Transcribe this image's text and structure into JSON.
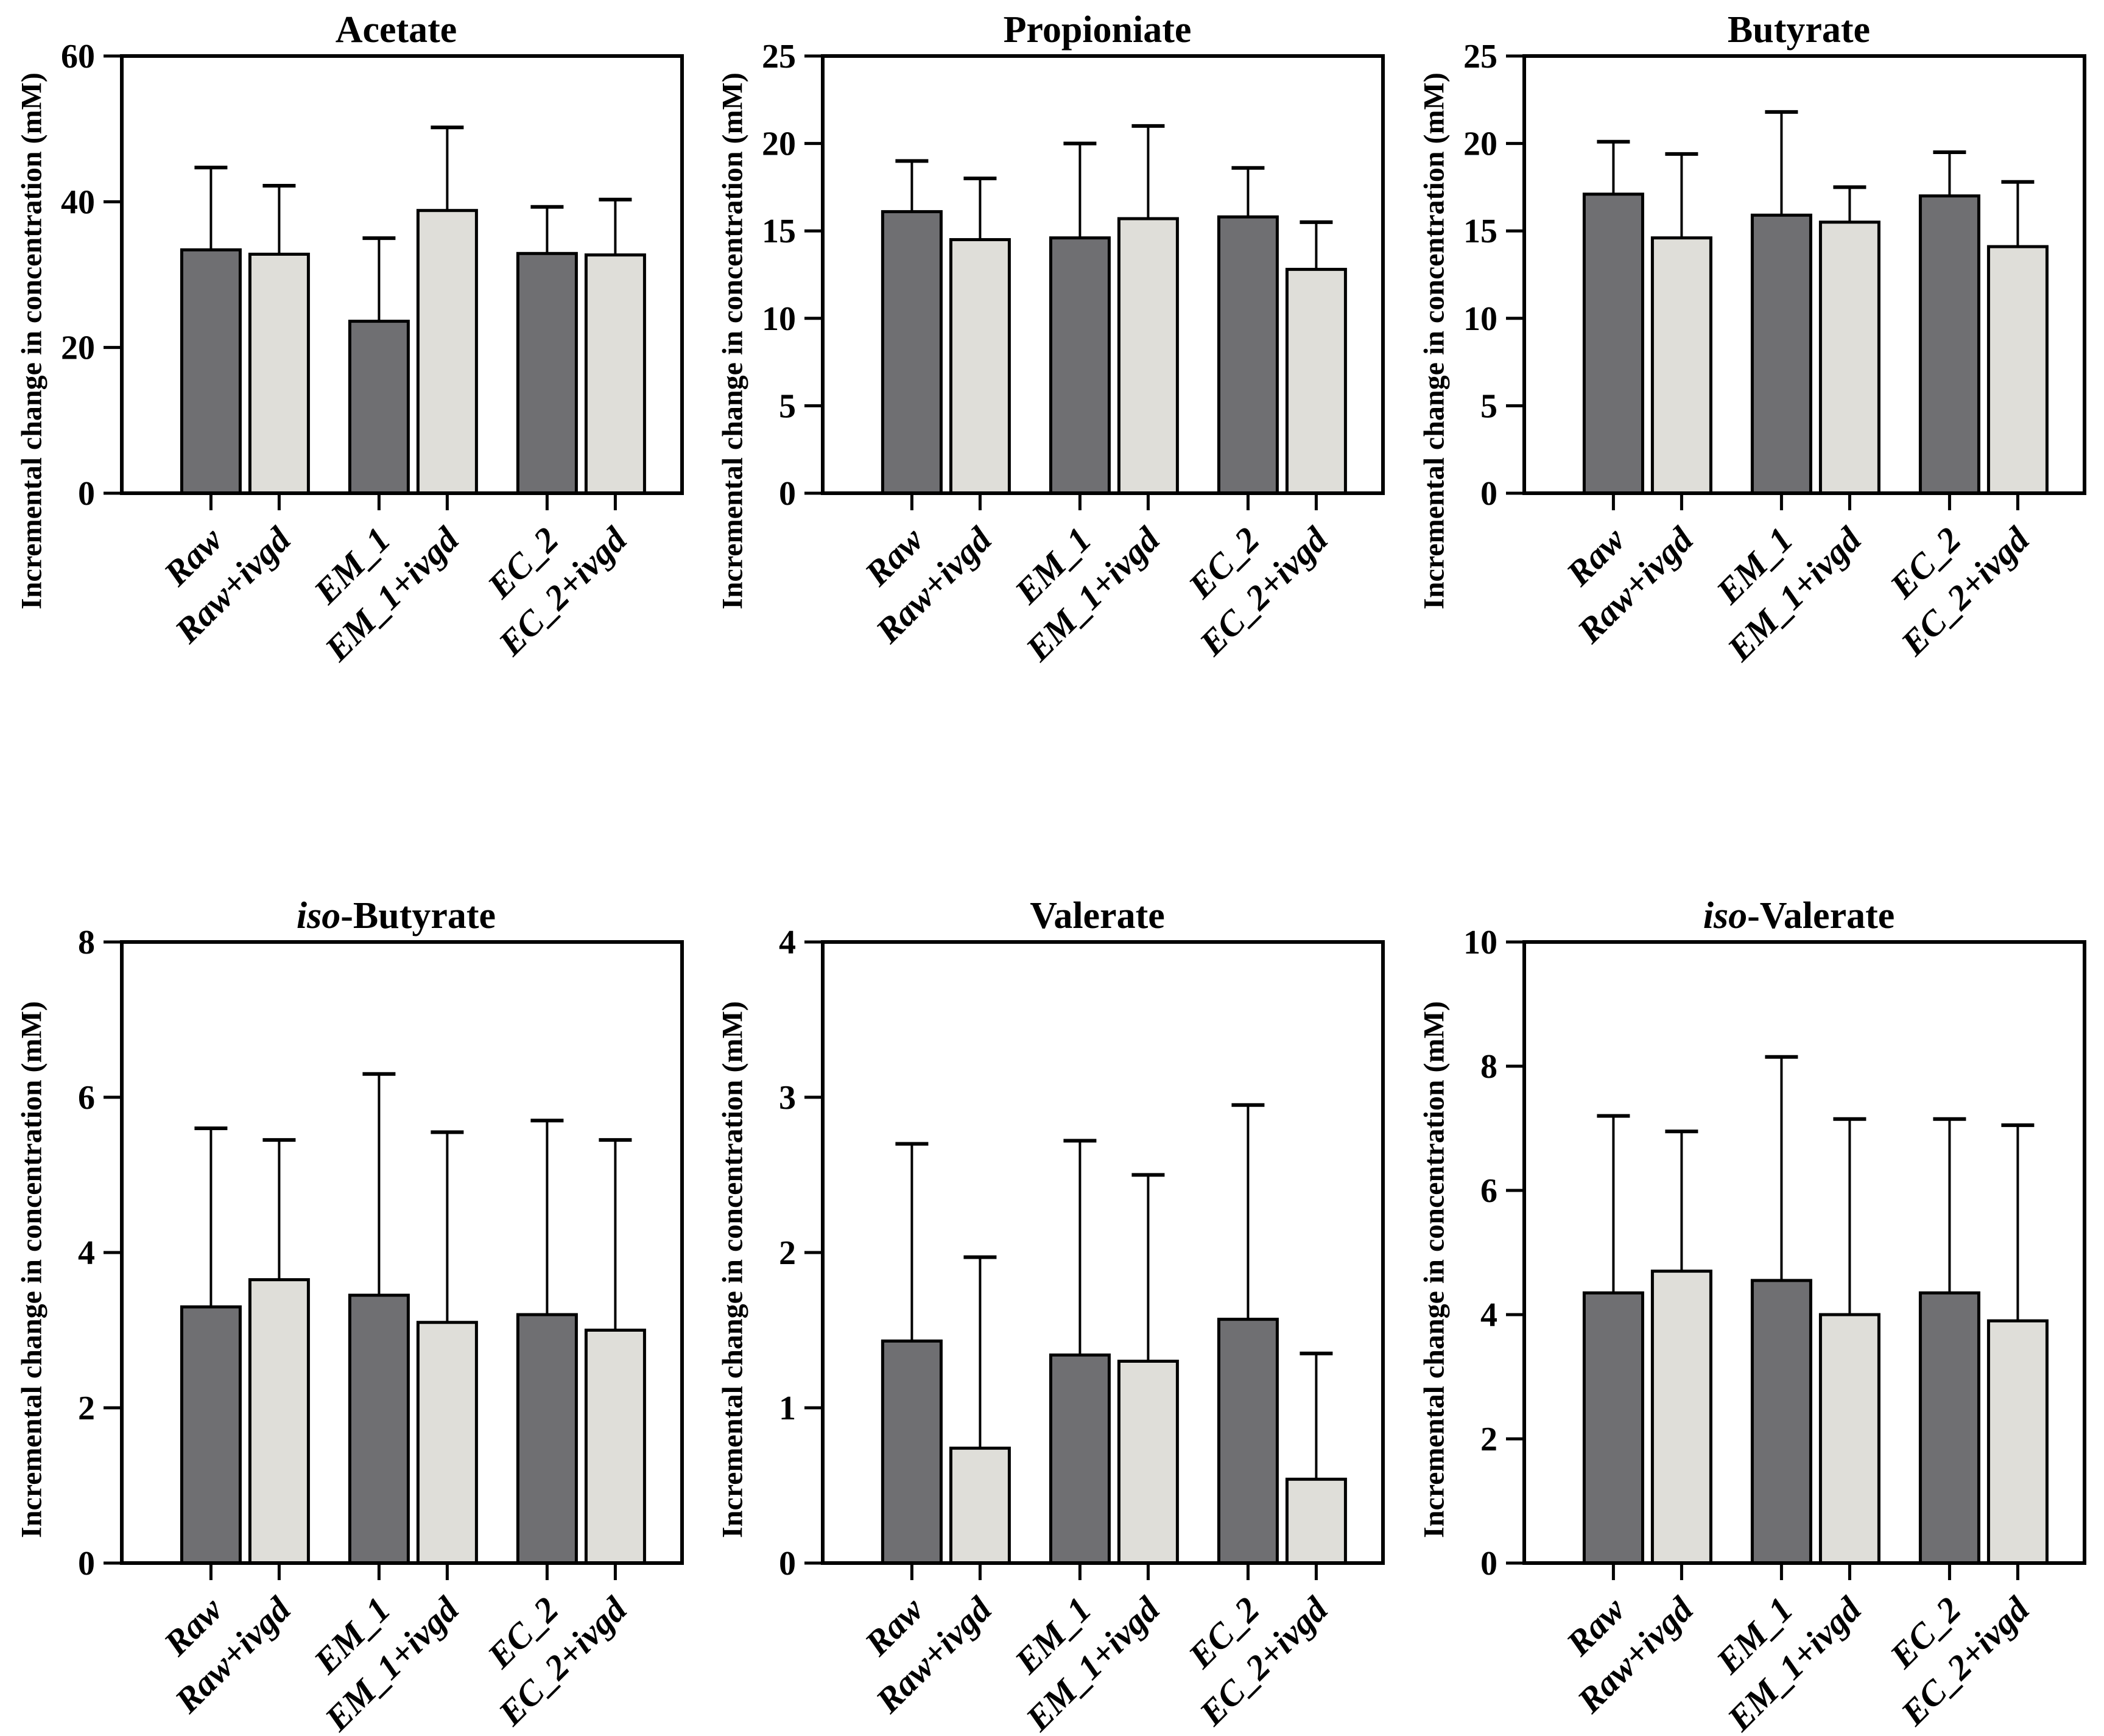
{
  "figure": {
    "background_color": "#ffffff",
    "text_color": "#000000",
    "bar_dark_color": "#6f6f72",
    "bar_light_color": "#dfded9",
    "bar_border_color": "#000000",
    "shared_y_axis_label": "Incremental change in concentration (mM)",
    "categories": [
      "Raw",
      "Raw+ivgd",
      "EM_1",
      "EM_1+ivgd",
      "EC_2",
      "EC_2+ivgd"
    ],
    "bar_style_sequence": [
      "dark",
      "light",
      "dark",
      "light",
      "dark",
      "light"
    ]
  },
  "chart_data": [
    {
      "type": "bar",
      "title": "Acetate",
      "title_italic_prefix": "",
      "title_rest": "Acetate",
      "xlabel": "",
      "ylabel": "Incremental change in concentration (mM)",
      "categories": [
        "Raw",
        "Raw+ivgd",
        "EM_1",
        "EM_1+ivgd",
        "EC_2",
        "EC_2+ivgd"
      ],
      "values": [
        33.4,
        32.8,
        23.6,
        38.8,
        32.9,
        32.7
      ],
      "error_bar_tops": [
        44.7,
        42.2,
        35.0,
        50.2,
        39.3,
        40.3
      ],
      "ylim": [
        0,
        60
      ],
      "yticks": [
        0,
        20,
        40,
        60
      ],
      "grid": false,
      "legend_position": "none"
    },
    {
      "type": "bar",
      "title": "Propioniate",
      "title_italic_prefix": "",
      "title_rest": "Propioniate",
      "xlabel": "",
      "ylabel": "Incremental change in concentration (mM)",
      "categories": [
        "Raw",
        "Raw+ivgd",
        "EM_1",
        "EM_1+ivgd",
        "EC_2",
        "EC_2+ivgd"
      ],
      "values": [
        16.1,
        14.5,
        14.6,
        15.7,
        15.8,
        12.8
      ],
      "error_bar_tops": [
        19.0,
        18.0,
        20.0,
        21.0,
        18.6,
        15.5
      ],
      "ylim": [
        0,
        25
      ],
      "yticks": [
        0,
        5,
        10,
        15,
        20,
        25
      ],
      "grid": false,
      "legend_position": "none"
    },
    {
      "type": "bar",
      "title": "Butyrate",
      "title_italic_prefix": "",
      "title_rest": "Butyrate",
      "xlabel": "",
      "ylabel": "Incremental change in concentration (mM)",
      "categories": [
        "Raw",
        "Raw+ivgd",
        "EM_1",
        "EM_1+ivgd",
        "EC_2",
        "EC_2+ivgd"
      ],
      "values": [
        17.1,
        14.6,
        15.9,
        15.5,
        17.0,
        14.1
      ],
      "error_bar_tops": [
        20.1,
        19.4,
        21.8,
        17.5,
        19.5,
        17.8
      ],
      "ylim": [
        0,
        25
      ],
      "yticks": [
        0,
        5,
        10,
        15,
        20,
        25
      ],
      "grid": false,
      "legend_position": "none"
    },
    {
      "type": "bar",
      "title": "iso-Butyrate",
      "title_italic_prefix": "iso",
      "title_rest": "-Butyrate",
      "xlabel": "",
      "ylabel": "Incremental change in concentration (mM)",
      "categories": [
        "Raw",
        "Raw+ivgd",
        "EM_1",
        "EM_1+ivgd",
        "EC_2",
        "EC_2+ivgd"
      ],
      "values": [
        3.3,
        3.65,
        3.45,
        3.1,
        3.2,
        3.0
      ],
      "error_bar_tops": [
        5.6,
        5.45,
        6.3,
        5.55,
        5.7,
        5.45
      ],
      "ylim": [
        0,
        8
      ],
      "yticks": [
        0,
        2,
        4,
        6,
        8
      ],
      "grid": false,
      "legend_position": "none"
    },
    {
      "type": "bar",
      "title": "Valerate",
      "title_italic_prefix": "",
      "title_rest": "Valerate",
      "xlabel": "",
      "ylabel": "Incremental change in concentration (mM)",
      "categories": [
        "Raw",
        "Raw+ivgd",
        "EM_1",
        "EM_1+ivgd",
        "EC_2",
        "EC_2+ivgd"
      ],
      "values": [
        1.43,
        0.74,
        1.34,
        1.3,
        1.57,
        0.54
      ],
      "error_bar_tops": [
        2.7,
        1.97,
        2.72,
        2.5,
        2.95,
        1.35
      ],
      "ylim": [
        0,
        4
      ],
      "yticks": [
        0,
        1,
        2,
        3,
        4
      ],
      "grid": false,
      "legend_position": "none"
    },
    {
      "type": "bar",
      "title": "iso-Valerate",
      "title_italic_prefix": "iso",
      "title_rest": "-Valerate",
      "xlabel": "",
      "ylabel": "Incremental change in concentration (mM)",
      "categories": [
        "Raw",
        "Raw+ivgd",
        "EM_1",
        "EM_1+ivgd",
        "EC_2",
        "EC_2+ivgd"
      ],
      "values": [
        4.35,
        4.7,
        4.55,
        4.0,
        4.35,
        3.9
      ],
      "error_bar_tops": [
        7.2,
        6.95,
        8.15,
        7.15,
        7.15,
        7.05
      ],
      "ylim": [
        0,
        10
      ],
      "yticks": [
        0,
        2,
        4,
        6,
        8,
        10
      ],
      "grid": false,
      "legend_position": "none"
    }
  ]
}
